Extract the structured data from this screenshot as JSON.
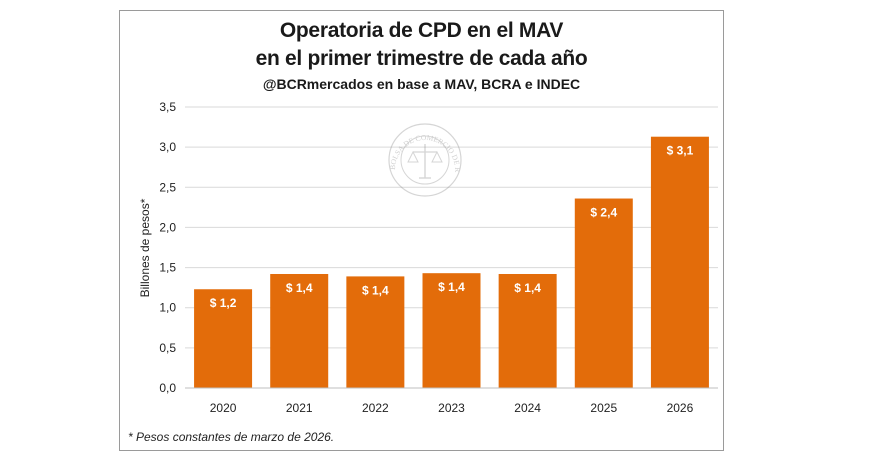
{
  "chart_data": {
    "type": "bar",
    "title": "Operatoria de CPD en el MAV",
    "title_line2": "en el primer trimestre de cada año",
    "subtitle": "@BCRmercados en base a MAV, BCRA e INDEC",
    "ylabel": "Billones de pesos*",
    "xlabel": "",
    "categories": [
      "2020",
      "2021",
      "2022",
      "2023",
      "2024",
      "2025",
      "2026"
    ],
    "values": [
      1.23,
      1.42,
      1.39,
      1.43,
      1.42,
      2.36,
      3.13
    ],
    "data_labels": [
      "$ 1,2",
      "$ 1,4",
      "$ 1,4",
      "$ 1,4",
      "$ 1,4",
      "$ 2,4",
      "$ 3,1"
    ],
    "ylim": [
      0,
      3.5
    ],
    "yticks": [
      0,
      0.5,
      1.0,
      1.5,
      2.0,
      2.5,
      3.0,
      3.5
    ],
    "ytick_labels": [
      "0,0",
      "0,5",
      "1,0",
      "1,5",
      "2,0",
      "2,5",
      "3,0",
      "3,5"
    ],
    "grid": true,
    "bar_color": "#e36c0a",
    "grid_color": "#d9d9d9",
    "footnote": "* Pesos constantes de marzo de 2026."
  },
  "watermark": {
    "text": "BOLSA DE COMERCIO DE ROSARIO"
  }
}
